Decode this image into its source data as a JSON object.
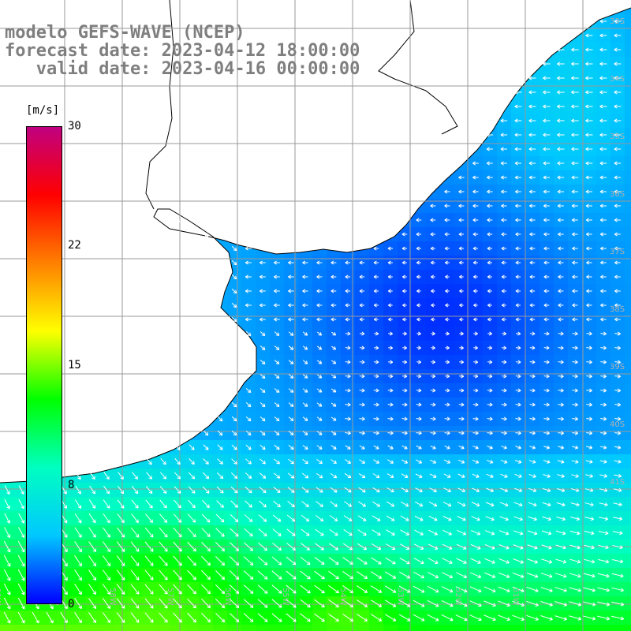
{
  "header": {
    "line1": "modelo GEFS-WAVE (NCEP)",
    "line2": "forecast date: 2023-04-12 18:00:00",
    "line3": "   valid date: 2023-04-16 00:00:00"
  },
  "colorbar": {
    "units": "[m/s]",
    "ticks": [
      "30",
      "22",
      "15",
      "8",
      "0"
    ],
    "tick_values": [
      30,
      22,
      15,
      8,
      0
    ],
    "vmin": 0,
    "vmax": 30,
    "colors": [
      "#0000ff",
      "#00c8ff",
      "#00ffc0",
      "#00ff00",
      "#ffff00",
      "#ff8000",
      "#ff0000",
      "#c00080"
    ]
  },
  "map": {
    "lat_labels": [
      "33S",
      "34S",
      "35S",
      "36S",
      "37S",
      "38S",
      "39S",
      "40S",
      "41S"
    ],
    "lon_labels": [
      "60W",
      "59W",
      "58W",
      "57W",
      "56W",
      "55W",
      "54W",
      "53W",
      "52W",
      "51W"
    ],
    "gridline_color": "#999999",
    "land_color": "#ffffff",
    "coast_color": "#000000",
    "arrow_color": "#ffffff"
  }
}
